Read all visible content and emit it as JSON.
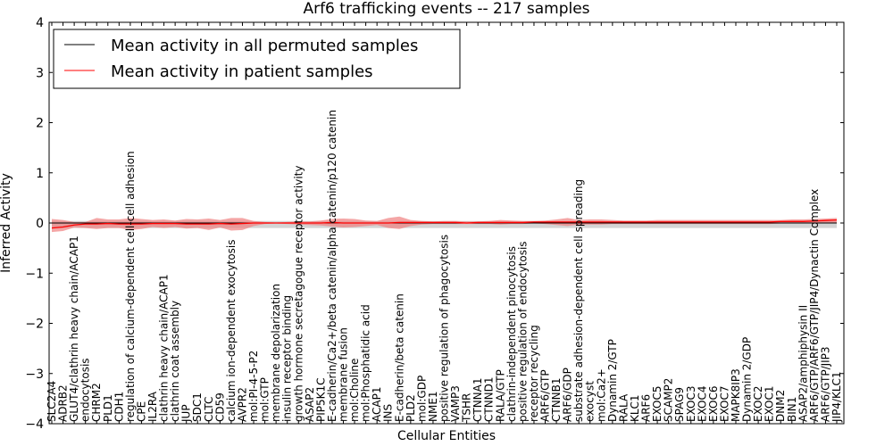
{
  "chart_data": {
    "type": "line",
    "title": "Arf6 trafficking events -- 217 samples",
    "xlabel": "Cellular Entities",
    "ylabel": "Inferred Activity",
    "ylim": [
      -4,
      4
    ],
    "yticks": [
      -4,
      -3,
      -2,
      -1,
      0,
      1,
      2,
      3,
      4
    ],
    "ytick_labels": [
      "−4",
      "−3",
      "−2",
      "−1",
      "0",
      "1",
      "2",
      "3",
      "4"
    ],
    "legend_position": "top-left",
    "categories": [
      "SLC2A4",
      "ADRB2",
      "GLUT4/clathrin heavy chain/ACAP1",
      "endocytosis",
      "CHRM2",
      "PLD1",
      "CDH1",
      "regulation of calcium-dependent cell-cell adhesion",
      "CPE",
      "IL2RA",
      "clathrin heavy chain/ACAP1",
      "clathrin coat assembly",
      "JUP",
      "SDC1",
      "CLTC",
      "CD59",
      "calcium ion-dependent exocytosis",
      "AVPR2",
      "mol:PI-4-5-P2",
      "mol:GTP",
      "membrane depolarization",
      "insulin receptor binding",
      "growth hormone secretagogue receptor activity",
      "ASAP2",
      "PIP5K1C",
      "E-cadherin/Ca2+/beta catenin/alpha catenin/p120 catenin",
      "membrane fusion",
      "mol:Choline",
      "mol:Phosphatidic acid",
      "ACAP1",
      "INS",
      "E-cadherin/beta catenin",
      "PLD2",
      "mol:GDP",
      "NME1",
      "positive regulation of phagocytosis",
      "VAMP3",
      "TSHR",
      "CTNNA1",
      "CTNND1",
      "RALA/GTP",
      "clathrin-independent pinocytosis",
      "positive regulation of endocytosis",
      "receptor recycling",
      "ARF6/GTP",
      "CTNNB1",
      "ARF6/GDP",
      "substrate adhesion-dependent cell spreading",
      "exocyst",
      "mol:Ca2+",
      "Dynamin 2/GTP",
      "RALA",
      "KLC1",
      "ARF6",
      "EXOC5",
      "SCAMP2",
      "SPAG9",
      "EXOC3",
      "EXOC4",
      "EXOC6",
      "EXOC7",
      "MAPK8IP3",
      "Dynamin 2/GDP",
      "EXOC2",
      "EXOC1",
      "DNM2",
      "BIN1",
      "ASAP2/amphiphysin II",
      "ARF6/GTP/ARF6/GTP/JIP4/Dynactin Complex",
      "ARF6/GTP/JIP3",
      "JIP4/KLC1"
    ],
    "series": [
      {
        "name": "Mean activity in all permuted samples",
        "color": "#000000",
        "band_color": "#b0b0b0",
        "values": [
          0,
          0,
          0,
          0,
          0,
          0,
          0,
          0,
          0,
          0,
          0,
          0,
          0,
          0,
          0,
          0,
          0,
          0,
          0,
          0,
          0,
          0,
          0,
          0,
          0,
          0,
          0,
          0,
          0,
          0,
          0,
          0,
          0,
          0,
          0,
          0,
          0,
          0,
          0,
          0,
          0,
          0,
          0,
          0,
          0,
          0,
          0,
          0,
          0,
          0,
          0,
          0,
          0,
          0,
          0,
          0,
          0,
          0,
          0,
          0,
          0,
          0,
          0,
          0,
          0,
          0,
          0,
          0,
          0,
          0,
          0
        ],
        "band_upper": [
          0.04,
          0.04,
          0.04,
          0.04,
          0.04,
          0.04,
          0.04,
          0.04,
          0.04,
          0.04,
          0.04,
          0.04,
          0.04,
          0.04,
          0.04,
          0.04,
          0.04,
          0.04,
          0.04,
          0.04,
          0.04,
          0.04,
          0.04,
          0.04,
          0.04,
          0.04,
          0.04,
          0.04,
          0.04,
          0.04,
          0.04,
          0.04,
          0.04,
          0.04,
          0.04,
          0.04,
          0.04,
          0.04,
          0.04,
          0.04,
          0.04,
          0.04,
          0.04,
          0.04,
          0.04,
          0.04,
          0.04,
          0.04,
          0.04,
          0.04,
          0.04,
          0.04,
          0.04,
          0.04,
          0.04,
          0.04,
          0.04,
          0.04,
          0.04,
          0.04,
          0.04,
          0.04,
          0.04,
          0.04,
          0.04,
          0.04,
          0.04,
          0.04,
          0.04,
          0.04,
          0.04
        ],
        "band_lower": [
          -0.1,
          -0.1,
          -0.1,
          -0.1,
          -0.1,
          -0.1,
          -0.1,
          -0.1,
          -0.1,
          -0.1,
          -0.1,
          -0.1,
          -0.1,
          -0.1,
          -0.1,
          -0.1,
          -0.1,
          -0.1,
          -0.1,
          -0.1,
          -0.1,
          -0.1,
          -0.1,
          -0.1,
          -0.1,
          -0.1,
          -0.1,
          -0.1,
          -0.1,
          -0.1,
          -0.1,
          -0.1,
          -0.1,
          -0.1,
          -0.1,
          -0.1,
          -0.1,
          -0.1,
          -0.1,
          -0.1,
          -0.1,
          -0.1,
          -0.1,
          -0.1,
          -0.1,
          -0.1,
          -0.1,
          -0.1,
          -0.1,
          -0.1,
          -0.1,
          -0.1,
          -0.1,
          -0.1,
          -0.1,
          -0.1,
          -0.1,
          -0.1,
          -0.1,
          -0.1,
          -0.1,
          -0.1,
          -0.1,
          -0.1,
          -0.1,
          -0.1,
          -0.1,
          -0.1,
          -0.1,
          -0.1,
          -0.1
        ]
      },
      {
        "name": "Mean activity in patient samples",
        "color": "#ff0000",
        "band_color": "#f08080",
        "values": [
          -0.1,
          -0.08,
          -0.04,
          -0.02,
          -0.02,
          -0.01,
          -0.02,
          -0.02,
          -0.02,
          -0.01,
          -0.01,
          -0.01,
          -0.02,
          -0.02,
          -0.02,
          -0.01,
          -0.02,
          -0.01,
          0,
          0,
          0,
          0,
          0,
          0,
          0,
          0.01,
          0,
          0,
          0,
          0,
          0,
          0.01,
          0.01,
          0.01,
          0.01,
          0.01,
          0.01,
          0,
          0.01,
          0.01,
          0.01,
          0.01,
          0.01,
          0.02,
          0.02,
          0.02,
          0.02,
          0.02,
          0.02,
          0.02,
          0.02,
          0.02,
          0.02,
          0.02,
          0.02,
          0.02,
          0.02,
          0.02,
          0.02,
          0.02,
          0.02,
          0.02,
          0.02,
          0.02,
          0.02,
          0.03,
          0.03,
          0.03,
          0.04,
          0.05,
          0.06
        ],
        "band_upper": [
          0.08,
          0.06,
          0.02,
          0.02,
          0.1,
          0.07,
          0.07,
          0.1,
          0.08,
          0.06,
          0.07,
          0.05,
          0.08,
          0.07,
          0.09,
          0.06,
          0.1,
          0.1,
          0.04,
          0.02,
          0.01,
          0.02,
          0.03,
          0.03,
          0.05,
          0.08,
          0.09,
          0.08,
          0.05,
          0.04,
          0.1,
          0.13,
          0.06,
          0.04,
          0.03,
          0.04,
          0.04,
          0.03,
          0.03,
          0.04,
          0.06,
          0.05,
          0.04,
          0.04,
          0.05,
          0.07,
          0.1,
          0.06,
          0.07,
          0.07,
          0.06,
          0.05,
          0.05,
          0.05,
          0.06,
          0.06,
          0.06,
          0.06,
          0.06,
          0.06,
          0.06,
          0.06,
          0.06,
          0.06,
          0.06,
          0.06,
          0.07,
          0.07,
          0.08,
          0.09,
          0.1
        ],
        "band_lower": [
          -0.18,
          -0.16,
          -0.09,
          -0.1,
          -0.12,
          -0.1,
          -0.1,
          -0.14,
          -0.12,
          -0.08,
          -0.1,
          -0.08,
          -0.11,
          -0.1,
          -0.14,
          -0.09,
          -0.15,
          -0.14,
          -0.06,
          -0.02,
          -0.01,
          -0.02,
          -0.03,
          -0.04,
          -0.05,
          -0.07,
          -0.09,
          -0.08,
          -0.06,
          -0.04,
          -0.1,
          -0.12,
          -0.06,
          -0.03,
          -0.02,
          -0.02,
          -0.02,
          -0.02,
          -0.02,
          -0.02,
          -0.03,
          -0.02,
          -0.02,
          -0.01,
          -0.02,
          -0.04,
          -0.06,
          -0.03,
          -0.03,
          -0.03,
          -0.02,
          -0.02,
          -0.02,
          -0.02,
          -0.02,
          -0.02,
          -0.02,
          -0.02,
          -0.02,
          -0.02,
          -0.02,
          -0.02,
          -0.02,
          -0.02,
          -0.02,
          -0.01,
          -0.01,
          -0.01,
          0,
          0,
          0.01
        ]
      }
    ]
  }
}
